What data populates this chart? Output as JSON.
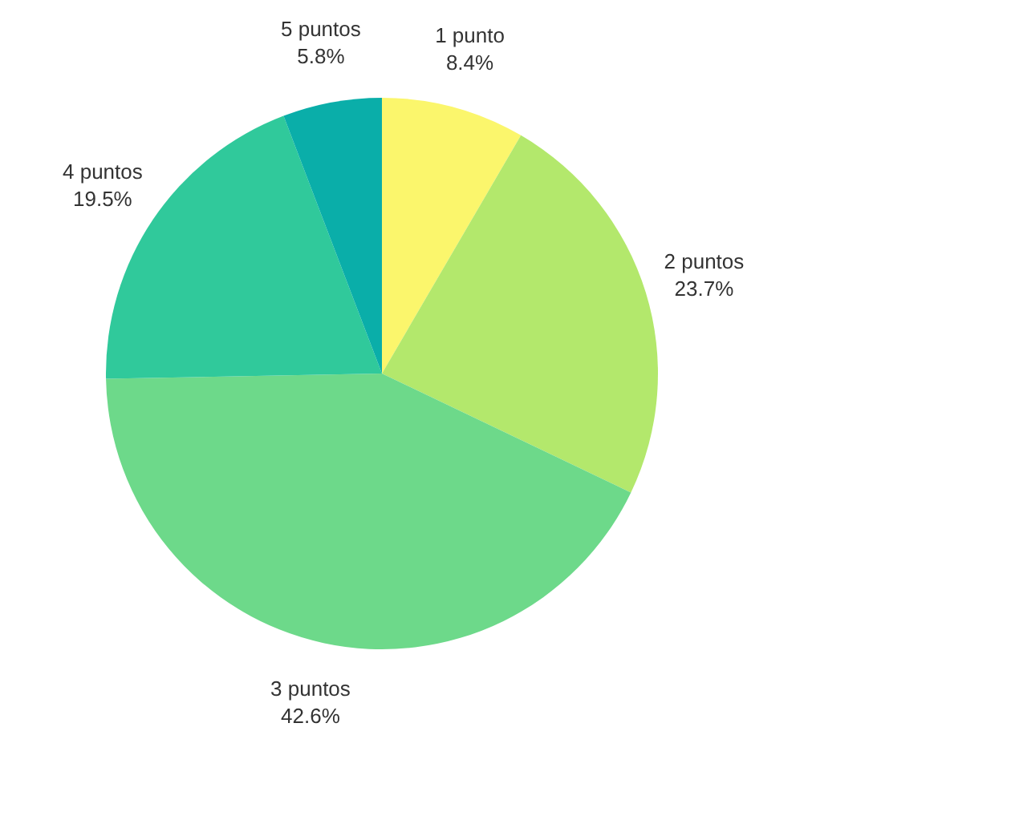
{
  "chart_data": {
    "type": "pie",
    "categories": [
      "1 punto",
      "2 puntos",
      "3 puntos",
      "4 puntos",
      "5 puntos"
    ],
    "values": [
      8.4,
      23.7,
      42.6,
      19.5,
      5.8
    ],
    "value_labels": [
      "8.4%",
      "23.7%",
      "42.6%",
      "19.5%",
      "5.8%"
    ],
    "colors": [
      "#fbf66c",
      "#b3e86c",
      "#6dd98a",
      "#30c99b",
      "#0aaea9"
    ],
    "legend": false
  }
}
